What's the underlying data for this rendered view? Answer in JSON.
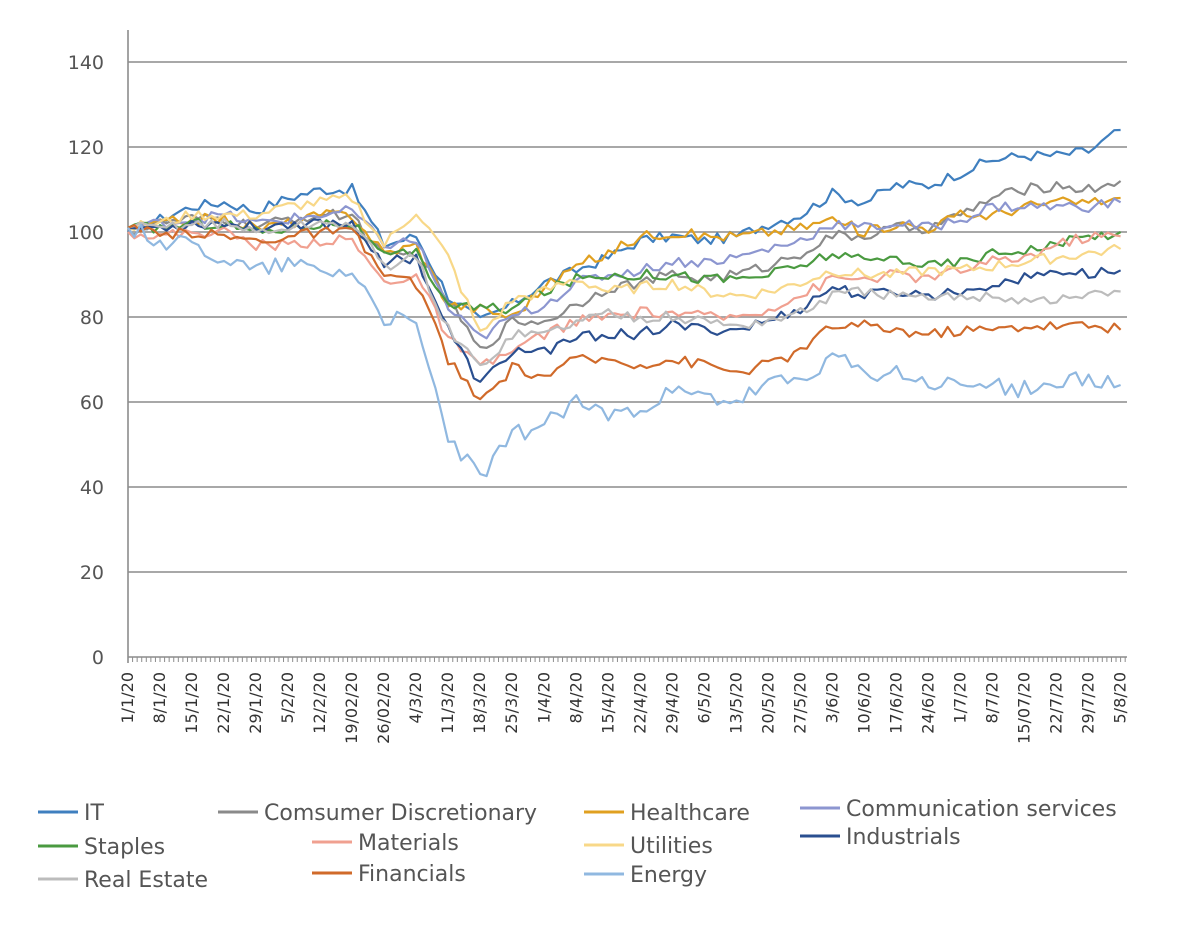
{
  "chart_data": {
    "type": "line",
    "title": "",
    "xlabel": "",
    "ylabel": "",
    "ylim": [
      0,
      140
    ],
    "y_ticks": [
      "0",
      "20",
      "40",
      "60",
      "80",
      "100",
      "120",
      "140"
    ],
    "y_tick_values": [
      0,
      20,
      40,
      60,
      80,
      100,
      120,
      140
    ],
    "grid": "horizontal",
    "legend_position": "bottom",
    "x_tick_labels": [
      "1/1/20",
      "8/1/20",
      "15/1/20",
      "22/1/20",
      "29/1/20",
      "5/2/20",
      "12/2/20",
      "19/02/20",
      "26/02/20",
      "4/3/20",
      "11/3/20",
      "18/3/20",
      "25/3/20",
      "1/4/20",
      "8/4/20",
      "15/4/20",
      "22/4/20",
      "29/4/20",
      "6/5/20",
      "13/5/20",
      "20/5/20",
      "27/5/20",
      "3/6/20",
      "10/6/20",
      "17/6/20",
      "24/6/20",
      "1/7/20",
      "8/7/20",
      "15/07/20",
      "22/7/20",
      "29/7/20",
      "5/8/20"
    ],
    "x_ticks_at_weeks": [
      0,
      1,
      2,
      3,
      4,
      5,
      6,
      7,
      8,
      9,
      10,
      11,
      12,
      13,
      14,
      15,
      16,
      17,
      18,
      19,
      20,
      21,
      22,
      23,
      24,
      25,
      26,
      27,
      28,
      29,
      30,
      31
    ],
    "series": [
      {
        "name": "IT",
        "color": "#3f7fbf",
        "values": [
          100,
          103,
          106,
          107,
          105,
          108,
          110,
          110,
          97,
          99,
          85,
          79,
          83,
          88,
          91,
          94,
          98,
          99,
          98,
          99,
          102,
          104,
          109,
          107,
          111,
          111,
          114,
          117,
          118,
          118,
          119,
          124
        ]
      },
      {
        "name": "Comsumer Discretionary",
        "color": "#8a8a8a",
        "values": [
          100,
          102,
          103,
          103,
          101,
          103,
          104,
          104,
          94,
          95,
          84,
          72,
          79,
          79,
          83,
          87,
          88,
          90,
          89,
          90,
          92,
          95,
          99,
          99,
          101,
          101,
          104,
          108,
          110,
          111,
          110,
          112
        ]
      },
      {
        "name": "Healthcare",
        "color": "#e0a020",
        "values": [
          101,
          102,
          103,
          103,
          101,
          102,
          104,
          104,
          95,
          97,
          83,
          82,
          80,
          87,
          92,
          95,
          99,
          100,
          99,
          99,
          100,
          101,
          103,
          100,
          102,
          101,
          104,
          104,
          106,
          107,
          107,
          108
        ]
      },
      {
        "name": "Communication services",
        "color": "#8c96d0",
        "values": [
          101,
          102,
          103,
          104,
          102,
          103,
          104,
          105,
          97,
          98,
          82,
          75,
          80,
          83,
          88,
          90,
          91,
          93,
          93,
          94,
          96,
          98,
          102,
          101,
          102,
          101,
          103,
          106,
          106,
          106,
          106,
          107
        ]
      },
      {
        "name": "Staples",
        "color": "#4a9a40",
        "values": [
          101,
          101,
          102,
          102,
          100,
          101,
          102,
          102,
          94,
          95,
          83,
          82,
          82,
          86,
          89,
          90,
          90,
          90,
          89,
          89,
          90,
          92,
          95,
          93,
          94,
          92,
          93,
          95,
          96,
          97,
          99,
          100
        ]
      },
      {
        "name": "Materials",
        "color": "#f0a090",
        "values": [
          100,
          99,
          100,
          100,
          97,
          97,
          98,
          98,
          88,
          90,
          75,
          68,
          72,
          76,
          79,
          80,
          81,
          81,
          80,
          80,
          82,
          85,
          89,
          89,
          90,
          89,
          91,
          93,
          94,
          97,
          99,
          99
        ]
      },
      {
        "name": "Utilities",
        "color": "#f8d888",
        "values": [
          101,
          102,
          104,
          104,
          104,
          106,
          107,
          108,
          97,
          105,
          94,
          76,
          84,
          86,
          89,
          86,
          87,
          88,
          86,
          85,
          86,
          88,
          91,
          90,
          90,
          91,
          91,
          92,
          93,
          94,
          95,
          96
        ]
      },
      {
        "name": "Industrials",
        "color": "#2a4f90",
        "values": [
          101,
          101,
          102,
          102,
          101,
          102,
          102,
          102,
          93,
          94,
          77,
          64,
          72,
          72,
          75,
          76,
          76,
          78,
          77,
          77,
          79,
          82,
          87,
          85,
          86,
          85,
          86,
          88,
          89,
          91,
          90,
          91
        ]
      },
      {
        "name": "Real Estate",
        "color": "#bcbcbc",
        "values": [
          101,
          101,
          102,
          102,
          100,
          101,
          102,
          102,
          92,
          94,
          77,
          68,
          76,
          76,
          79,
          81,
          80,
          80,
          79,
          78,
          79,
          81,
          85,
          86,
          85,
          84,
          85,
          85,
          84,
          84,
          85,
          86
        ]
      },
      {
        "name": "Financials",
        "color": "#d06a2a",
        "values": [
          101,
          99,
          100,
          99,
          98,
          99,
          100,
          100,
          90,
          88,
          70,
          60,
          68,
          66,
          70,
          70,
          69,
          70,
          69,
          67,
          69,
          72,
          78,
          78,
          77,
          76,
          77,
          77,
          78,
          78,
          78,
          77
        ]
      },
      {
        "name": "Energy",
        "color": "#90b8e0",
        "values": [
          101,
          98,
          97,
          94,
          91,
          93,
          91,
          91,
          80,
          78,
          52,
          42,
          52,
          55,
          60,
          57,
          59,
          62,
          61,
          60,
          64,
          65,
          71,
          66,
          67,
          64,
          64,
          64,
          63,
          65,
          65,
          64
        ]
      }
    ]
  }
}
